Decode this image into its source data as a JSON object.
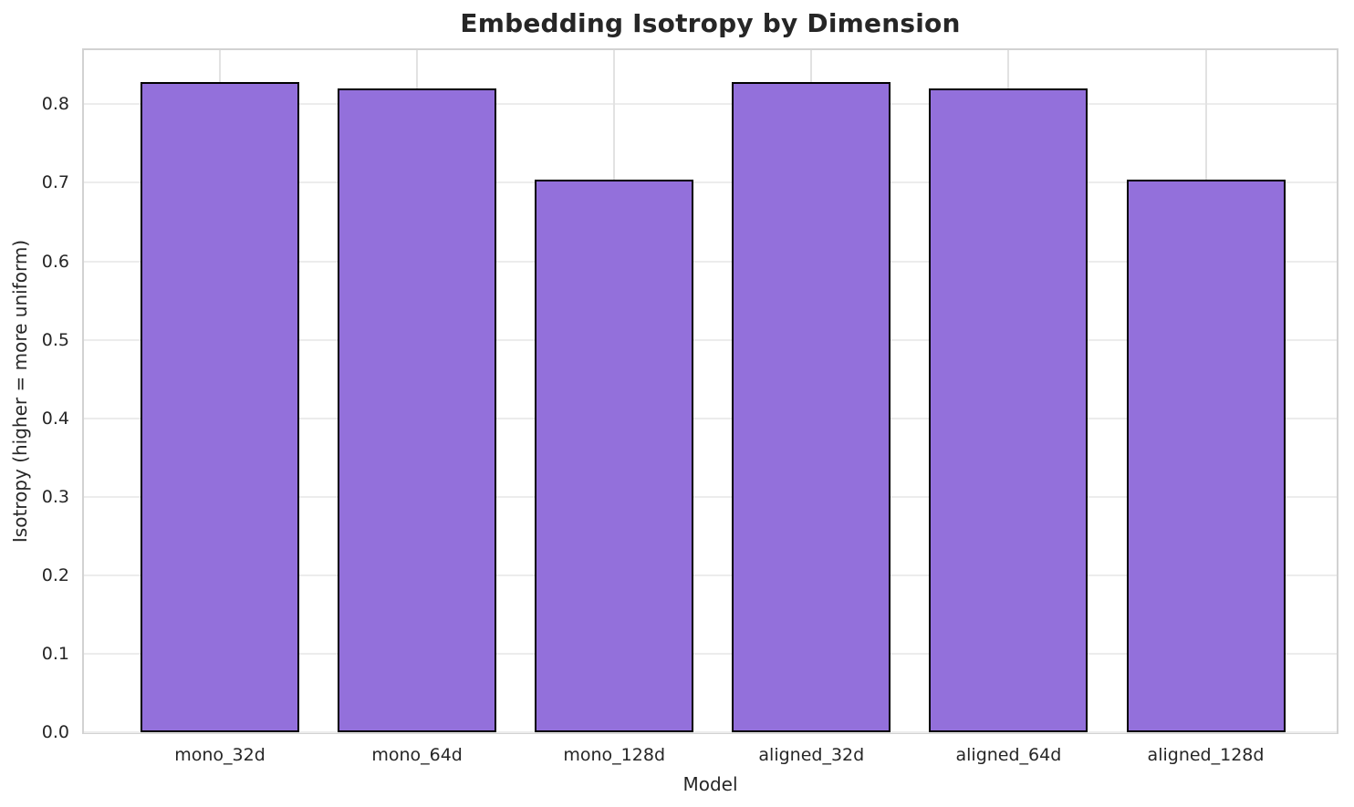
{
  "chart_data": {
    "type": "bar",
    "title": "Embedding Isotropy by Dimension",
    "xlabel": "Model",
    "ylabel": "Isotropy (higher = more uniform)",
    "categories": [
      "mono_32d",
      "mono_64d",
      "mono_128d",
      "aligned_32d",
      "aligned_64d",
      "aligned_128d"
    ],
    "values": [
      0.828,
      0.82,
      0.704,
      0.828,
      0.82,
      0.704
    ],
    "ylim": [
      0.0,
      0.869
    ],
    "yticks": [
      0.0,
      0.1,
      0.2,
      0.3,
      0.4,
      0.5,
      0.6,
      0.7,
      0.8
    ],
    "ytick_labels": [
      "0.0",
      "0.1",
      "0.2",
      "0.3",
      "0.4",
      "0.5",
      "0.6",
      "0.7",
      "0.8"
    ],
    "grid": true,
    "legend": "none",
    "bar_color": "#9370db",
    "bar_edge_color": "#000000",
    "text_color": "#262626"
  }
}
